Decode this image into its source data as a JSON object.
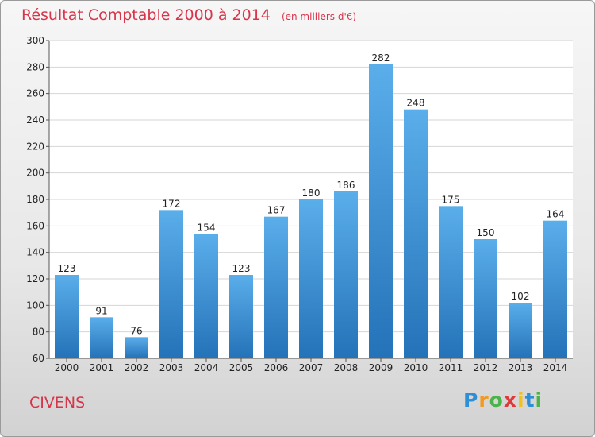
{
  "header": {
    "title": "Résultat Comptable 2000 à 2014",
    "subtitle": "(en milliers d'€)"
  },
  "footer": {
    "city": "CIVENS",
    "logo_letters": [
      "P",
      "r",
      "o",
      "x",
      "i",
      "t",
      "i"
    ],
    "logo_colors": [
      "#2d8fd6",
      "#f39a1e",
      "#49b548",
      "#e03a3a",
      "#f2c21b",
      "#2d8fd6",
      "#49b548"
    ]
  },
  "colors": {
    "title": "#d8344a",
    "bar_top": "#5aaeea",
    "bar_bottom": "#2472b8",
    "plot_bg": "#ffffff",
    "grid": "#d6d6d6"
  },
  "chart_data": {
    "type": "bar",
    "title": "Résultat Comptable 2000 à 2014",
    "subtitle": "(en milliers d'€)",
    "xlabel": "",
    "ylabel": "",
    "ylim": [
      60,
      300
    ],
    "yticks": [
      60,
      80,
      100,
      120,
      140,
      160,
      180,
      200,
      220,
      240,
      260,
      280,
      300
    ],
    "grid": true,
    "categories": [
      "2000",
      "2001",
      "2002",
      "2003",
      "2004",
      "2005",
      "2006",
      "2007",
      "2008",
      "2009",
      "2010",
      "2011",
      "2012",
      "2013",
      "2014"
    ],
    "values": [
      123,
      91,
      76,
      172,
      154,
      123,
      167,
      180,
      186,
      282,
      248,
      175,
      150,
      102,
      164
    ]
  }
}
